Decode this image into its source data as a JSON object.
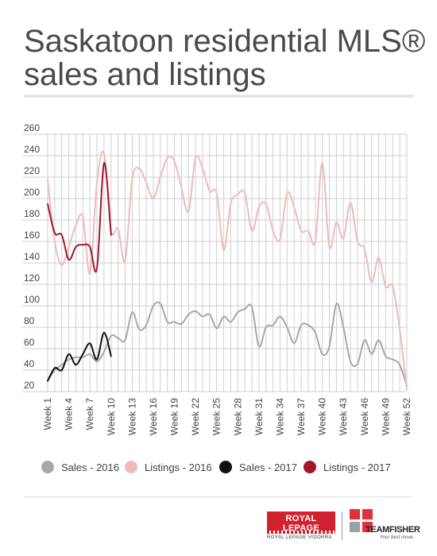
{
  "title_line1": "Saskatoon residential MLS®",
  "title_line2": "sales and listings",
  "logos": {
    "royal_lepage": "ROYAL LEPAGE",
    "royal_lepage_sub": "ROYAL LEPAGE VIDORRA",
    "team_fisher": "TEAMFISHER",
    "team_fisher_tag": "Your best move."
  },
  "colors": {
    "sales_2016": "#a8a8a8",
    "listings_2016": "#ecbcbc",
    "sales_2017": "#111111",
    "listings_2017": "#a3172f",
    "grid": "#cfcfcf"
  },
  "chart_data": {
    "type": "line",
    "title": "Saskatoon residential MLS® sales and listings",
    "ylim": [
      20,
      260
    ],
    "yticks": [
      20,
      40,
      60,
      80,
      100,
      120,
      140,
      160,
      180,
      200,
      220,
      240,
      260
    ],
    "xlim": [
      1,
      52
    ],
    "xtick_labels": [
      "Week 1",
      "Week 4",
      "Week 7",
      "Week 10",
      "Week 13",
      "Week 16",
      "Week 19",
      "Week 22",
      "Week 25",
      "Week 28",
      "Week 31",
      "Week 34",
      "Week 37",
      "Week 40",
      "Week 43",
      "Week 46",
      "Week 49",
      "Week 52"
    ],
    "grid": true,
    "legend_position": "bottom",
    "series": [
      {
        "name": "Sales - 2016",
        "color": "#a8a8a8",
        "x": [
          1,
          2,
          3,
          4,
          5,
          6,
          7,
          8,
          9,
          10,
          11,
          12,
          13,
          14,
          15,
          16,
          17,
          18,
          19,
          20,
          21,
          22,
          23,
          24,
          25,
          26,
          27,
          28,
          29,
          30,
          31,
          32,
          33,
          34,
          35,
          36,
          37,
          38,
          39,
          40,
          41,
          42,
          43,
          44,
          45,
          46,
          47,
          48,
          49,
          50,
          51,
          52
        ],
        "y": [
          30,
          40,
          45,
          50,
          52,
          52,
          55,
          48,
          57,
          72,
          70,
          68,
          94,
          78,
          82,
          100,
          102,
          85,
          85,
          83,
          92,
          95,
          90,
          92,
          79,
          90,
          85,
          94,
          97,
          99,
          62,
          80,
          82,
          90,
          80,
          65,
          82,
          82,
          75,
          55,
          62,
          102,
          80,
          48,
          46,
          68,
          55,
          68,
          53,
          50,
          45,
          25
        ]
      },
      {
        "name": "Listings - 2016",
        "color": "#ecbcbc",
        "x": [
          1,
          2,
          3,
          4,
          5,
          6,
          7,
          8,
          9,
          10,
          11,
          12,
          13,
          14,
          15,
          16,
          17,
          18,
          19,
          20,
          21,
          22,
          23,
          24,
          25,
          26,
          27,
          28,
          29,
          30,
          31,
          32,
          33,
          34,
          35,
          36,
          37,
          38,
          39,
          40,
          41,
          42,
          43,
          44,
          45,
          46,
          47,
          48,
          49,
          50,
          51,
          52
        ],
        "y": [
          218,
          160,
          138,
          155,
          175,
          183,
          130,
          215,
          242,
          170,
          172,
          142,
          218,
          228,
          215,
          200,
          220,
          238,
          235,
          210,
          188,
          238,
          228,
          207,
          205,
          152,
          195,
          204,
          205,
          170,
          192,
          195,
          170,
          162,
          205,
          192,
          170,
          170,
          160,
          233,
          155,
          178,
          163,
          196,
          160,
          153,
          122,
          145,
          118,
          118,
          78,
          22
        ]
      },
      {
        "name": "Sales - 2017",
        "color": "#111111",
        "x": [
          1,
          2,
          3,
          4,
          5,
          6,
          7,
          8,
          9,
          10
        ],
        "y": [
          30,
          42,
          40,
          55,
          45,
          55,
          65,
          50,
          75,
          53
        ]
      },
      {
        "name": "Listings - 2017",
        "color": "#a3172f",
        "x": [
          1,
          2,
          3,
          4,
          5,
          6,
          7,
          8,
          9,
          10
        ],
        "y": [
          195,
          168,
          166,
          143,
          155,
          157,
          155,
          135,
          233,
          166
        ]
      }
    ]
  }
}
